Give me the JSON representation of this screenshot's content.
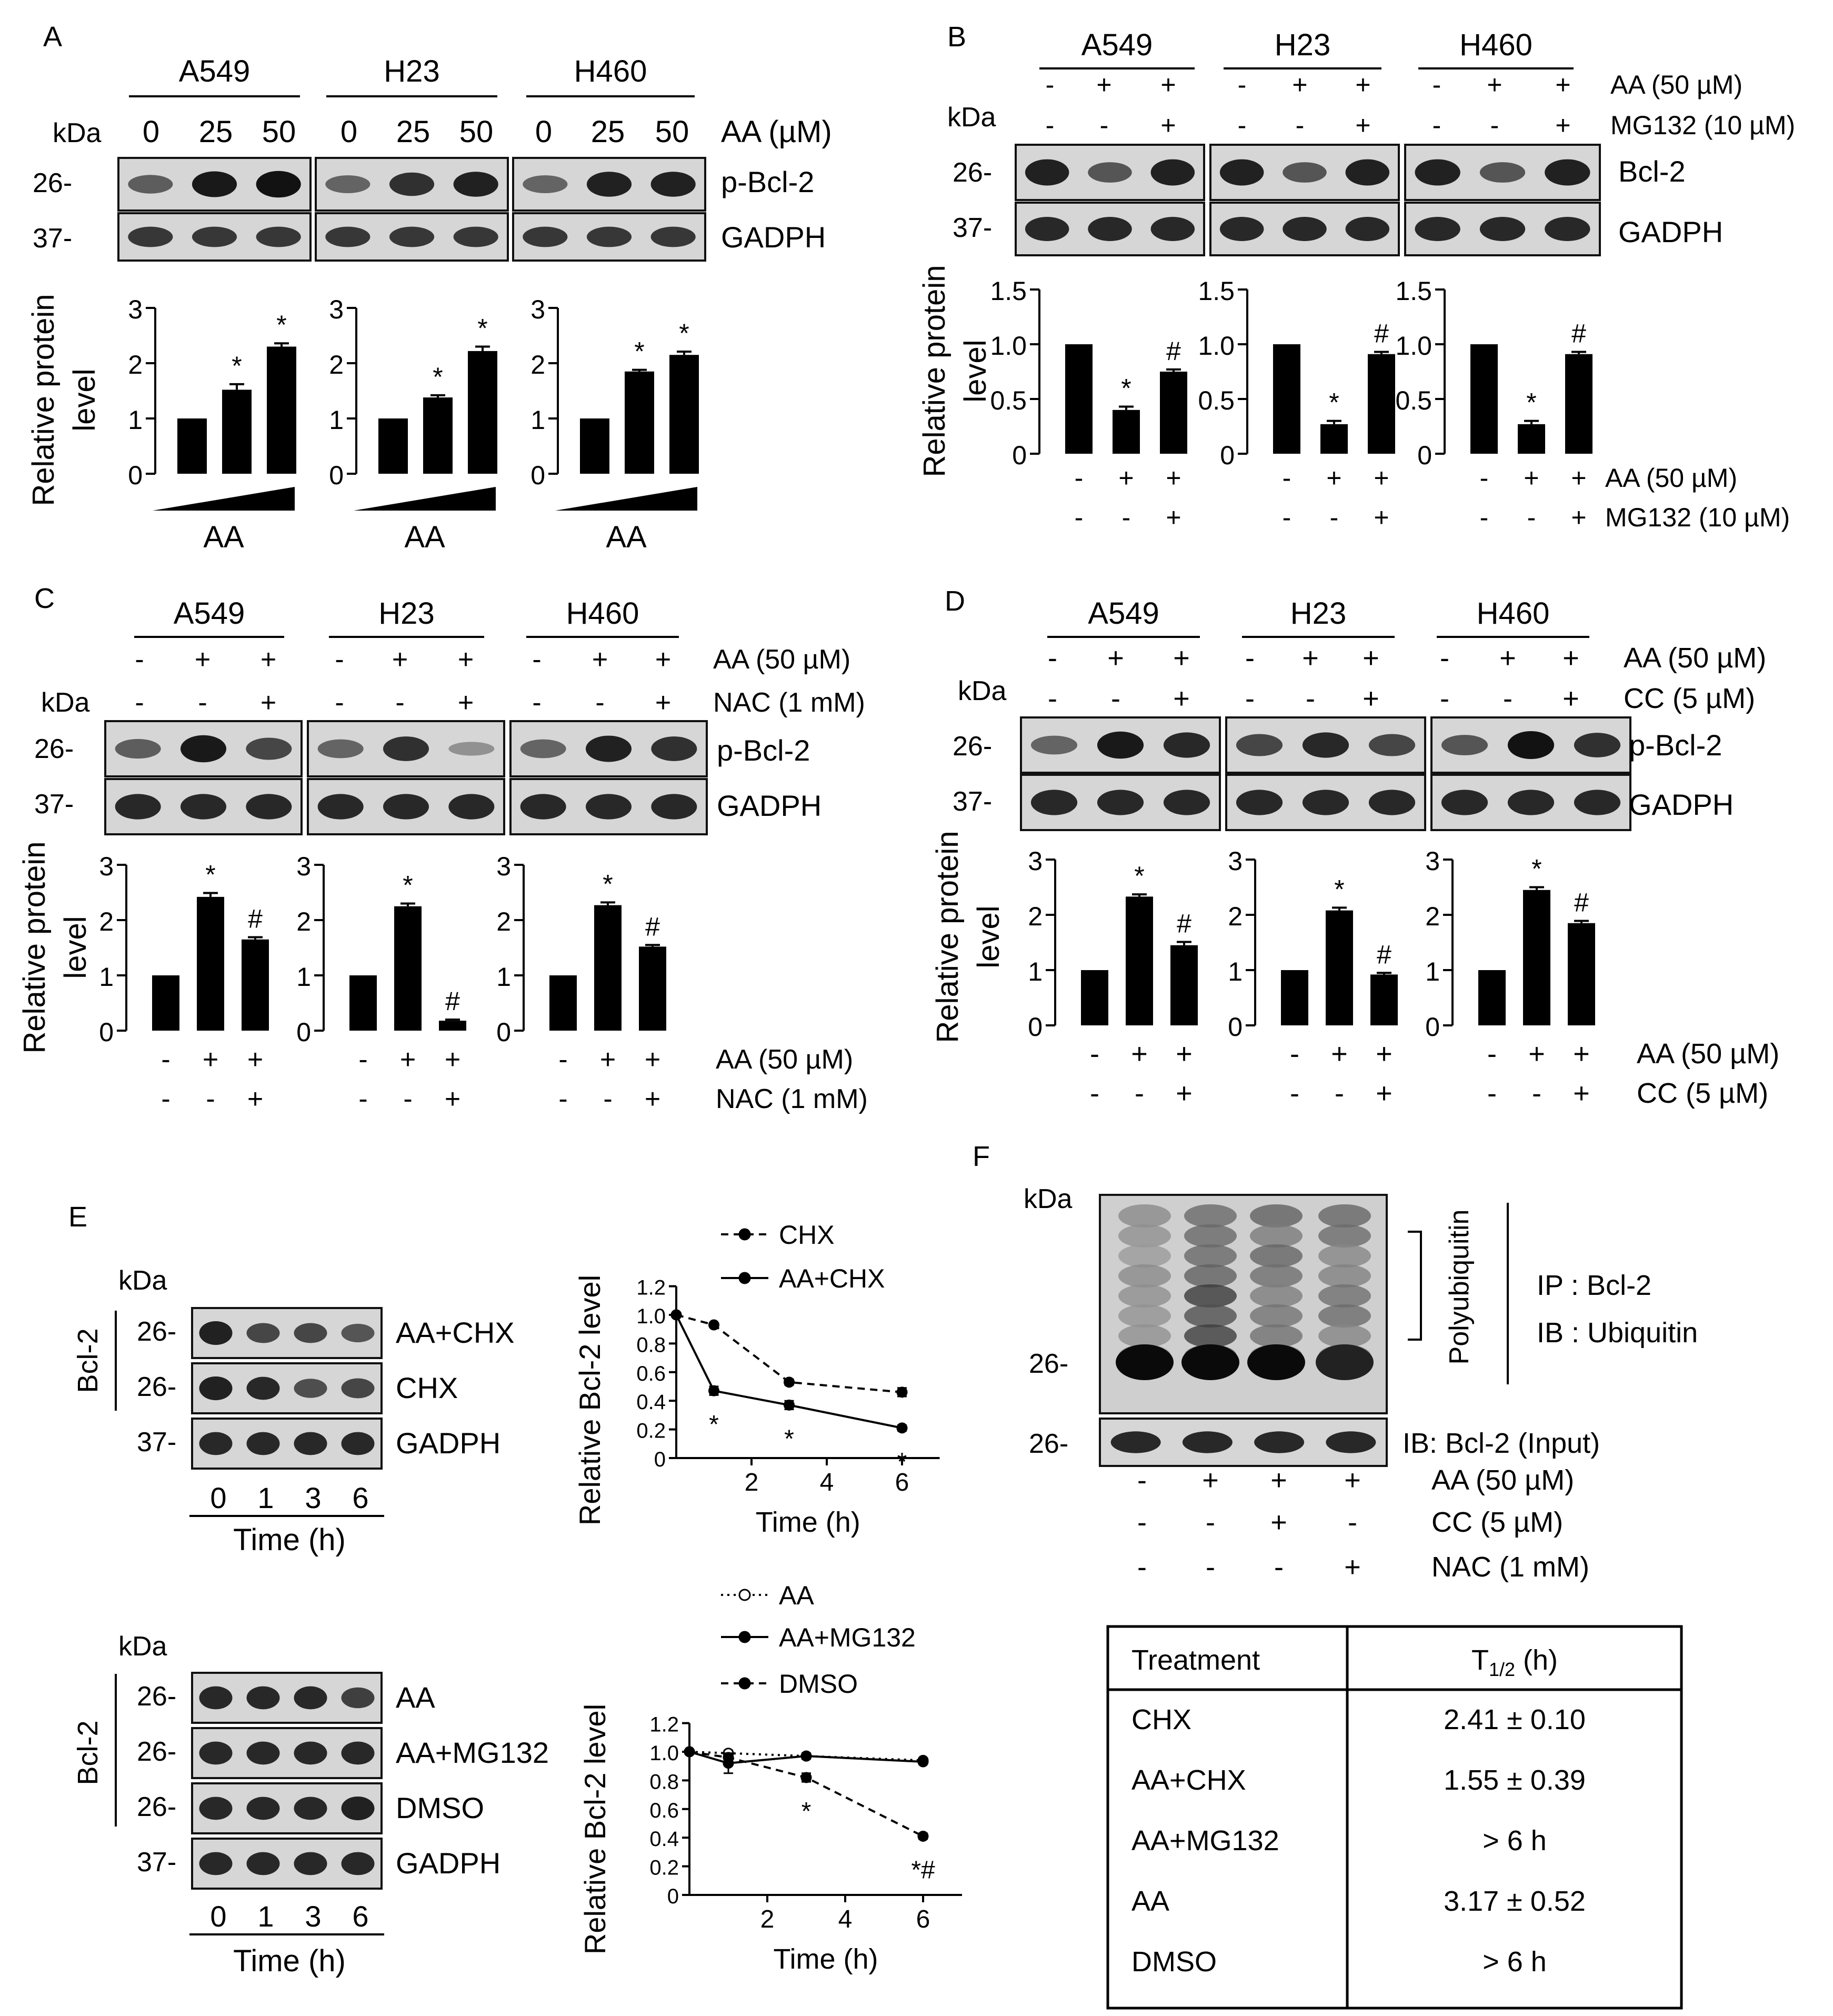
{
  "panels": {
    "A": {
      "letter": "A",
      "kda": "kDa",
      "lines": [
        "A549",
        "H23",
        "H460"
      ],
      "doses": [
        "0",
        "25",
        "50"
      ],
      "treatment": "AA (µM)",
      "markers": [
        "26-",
        "37-"
      ],
      "blots": [
        "p-Bcl-2",
        "GADPH"
      ],
      "ylabel": [
        "Relative protein",
        "level"
      ],
      "xlabel": "AA",
      "sig": "*"
    },
    "B": {
      "letter": "B",
      "kda": "kDa",
      "lines": [
        "A549",
        "H23",
        "H460"
      ],
      "rows": [
        {
          "label": "AA (50 µM)",
          "signs": [
            "-",
            "+",
            "+"
          ]
        },
        {
          "label": "MG132 (10 µM)",
          "signs": [
            "-",
            "-",
            "+"
          ]
        }
      ],
      "markers": [
        "26-",
        "37-"
      ],
      "blots": [
        "Bcl-2",
        "GADPH"
      ],
      "ylabel": [
        "Relative protein",
        "level"
      ],
      "sig": [
        "*",
        "#"
      ]
    },
    "C": {
      "letter": "C",
      "kda": "kDa",
      "lines": [
        "A549",
        "H23",
        "H460"
      ],
      "rows": [
        {
          "label": "AA (50 µM)",
          "signs": [
            "-",
            "+",
            "+"
          ]
        },
        {
          "label": "NAC (1 mM)",
          "signs": [
            "-",
            "-",
            "+"
          ]
        }
      ],
      "markers": [
        "26-",
        "37-"
      ],
      "blots": [
        "p-Bcl-2",
        "GADPH"
      ],
      "ylabel": [
        "Relative protein",
        "level"
      ],
      "sig": [
        "*",
        "#"
      ]
    },
    "D": {
      "letter": "D",
      "kda": "kDa",
      "lines": [
        "A549",
        "H23",
        "H460"
      ],
      "rows": [
        {
          "label": "AA (50 µM)",
          "signs": [
            "-",
            "+",
            "+"
          ]
        },
        {
          "label": "CC (5 µM)",
          "signs": [
            "-",
            "-",
            "+"
          ]
        }
      ],
      "markers": [
        "26-",
        "37-"
      ],
      "blots": [
        "p-Bcl-2",
        "GADPH"
      ],
      "ylabel": [
        "Relative protein",
        "level"
      ],
      "sig": [
        "*",
        "#"
      ]
    },
    "E": {
      "letter": "E",
      "kda": "kDa",
      "group": "Bcl-2",
      "times": [
        "0",
        "1",
        "3",
        "6"
      ],
      "time_label": "Time (h)",
      "blots_top": [
        "AA+CHX",
        "CHX",
        "GADPH"
      ],
      "markers_top": [
        "26-",
        "26-",
        "37-"
      ],
      "blots_bottom": [
        "AA",
        "AA+MG132",
        "DMSO",
        "GADPH"
      ],
      "markers_bottom": [
        "26-",
        "26-",
        "26-",
        "37-"
      ],
      "ylabel": "Relative Bcl-2 level"
    },
    "F": {
      "letter": "F",
      "kda": "kDa",
      "marker": "26-",
      "bracket_label": "Polyubiquitin",
      "ip": "IP : Bcl-2",
      "ib": "IB : Ubiquitin",
      "input_label": "IB: Bcl-2 (Input)",
      "rows": [
        {
          "label": "AA (50 µM)",
          "signs": [
            "-",
            "+",
            "+",
            "+"
          ]
        },
        {
          "label": "CC (5 µM)",
          "signs": [
            "-",
            "-",
            "+",
            "-"
          ]
        },
        {
          "label": "NAC (1 mM)",
          "signs": [
            "-",
            "-",
            "-",
            "+"
          ]
        }
      ],
      "table": {
        "headers": [
          "Treatment",
          "T1/2 (h)"
        ],
        "header_t": "T",
        "header_sub": "1/2",
        "header_unit": " (h)",
        "rows": [
          [
            "CHX",
            "2.41 ± 0.10"
          ],
          [
            "AA+CHX",
            "1.55 ± 0.39"
          ],
          [
            "AA+MG132",
            "> 6 h"
          ],
          [
            "AA",
            "3.17 ± 0.52"
          ],
          [
            "DMSO",
            "> 6 h"
          ]
        ]
      }
    }
  },
  "chart_data": [
    {
      "id": "A-A549",
      "type": "bar",
      "categories": [
        "0",
        "25",
        "50"
      ],
      "values": [
        1.0,
        1.52,
        2.3
      ],
      "errors": [
        0,
        0.1,
        0.06
      ],
      "ylim": [
        0,
        3
      ],
      "yticks": [
        0,
        1,
        2,
        3
      ],
      "marks": [
        "",
        "*",
        "*"
      ],
      "ylabel": "Relative protein level",
      "xlabel": "AA"
    },
    {
      "id": "A-H23",
      "type": "bar",
      "categories": [
        "0",
        "25",
        "50"
      ],
      "values": [
        1.0,
        1.38,
        2.22
      ],
      "errors": [
        0,
        0.04,
        0.08
      ],
      "ylim": [
        0,
        3
      ],
      "yticks": [
        0,
        1,
        2,
        3
      ],
      "marks": [
        "",
        "*",
        "*"
      ],
      "xlabel": "AA"
    },
    {
      "id": "A-H460",
      "type": "bar",
      "categories": [
        "0",
        "25",
        "50"
      ],
      "values": [
        1.0,
        1.85,
        2.15
      ],
      "errors": [
        0,
        0.03,
        0.06
      ],
      "ylim": [
        0,
        3
      ],
      "yticks": [
        0,
        1,
        2,
        3
      ],
      "marks": [
        "",
        "*",
        "*"
      ],
      "xlabel": "AA"
    },
    {
      "id": "B-A549",
      "type": "bar",
      "categories": [
        "1",
        "2",
        "3"
      ],
      "values": [
        1.0,
        0.4,
        0.75
      ],
      "errors": [
        0,
        0.03,
        0.02
      ],
      "ylim": [
        0,
        1.5
      ],
      "yticks": [
        0,
        0.5,
        1.0,
        1.5
      ],
      "marks": [
        "",
        "*",
        "#"
      ],
      "ylabel": "Relative protein level"
    },
    {
      "id": "B-H23",
      "type": "bar",
      "categories": [
        "1",
        "2",
        "3"
      ],
      "values": [
        1.0,
        0.27,
        0.91
      ],
      "errors": [
        0,
        0.03,
        0.02
      ],
      "ylim": [
        0,
        1.5
      ],
      "yticks": [
        0,
        0.5,
        1.0,
        1.5
      ],
      "marks": [
        "",
        "*",
        "#"
      ]
    },
    {
      "id": "B-H460",
      "type": "bar",
      "categories": [
        "1",
        "2",
        "3"
      ],
      "values": [
        1.0,
        0.27,
        0.91
      ],
      "errors": [
        0,
        0.03,
        0.02
      ],
      "ylim": [
        0,
        1.5
      ],
      "yticks": [
        0,
        0.5,
        1.0,
        1.5
      ],
      "marks": [
        "",
        "*",
        "#"
      ]
    },
    {
      "id": "C-A549",
      "type": "bar",
      "categories": [
        "1",
        "2",
        "3"
      ],
      "values": [
        1.0,
        2.42,
        1.65
      ],
      "errors": [
        0,
        0.07,
        0.04
      ],
      "ylim": [
        0,
        3
      ],
      "yticks": [
        0,
        1,
        2,
        3
      ],
      "marks": [
        "",
        "*",
        "#"
      ],
      "ylabel": "Relative protein level"
    },
    {
      "id": "C-H23",
      "type": "bar",
      "categories": [
        "1",
        "2",
        "3"
      ],
      "values": [
        1.0,
        2.25,
        0.18
      ],
      "errors": [
        0,
        0.05,
        0.02
      ],
      "ylim": [
        0,
        3
      ],
      "yticks": [
        0,
        1,
        2,
        3
      ],
      "marks": [
        "",
        "*",
        "#"
      ]
    },
    {
      "id": "C-H460",
      "type": "bar",
      "categories": [
        "1",
        "2",
        "3"
      ],
      "values": [
        1.0,
        2.27,
        1.52
      ],
      "errors": [
        0,
        0.05,
        0.03
      ],
      "ylim": [
        0,
        3
      ],
      "yticks": [
        0,
        1,
        2,
        3
      ],
      "marks": [
        "",
        "*",
        "#"
      ]
    },
    {
      "id": "D-A549",
      "type": "bar",
      "categories": [
        "1",
        "2",
        "3"
      ],
      "values": [
        1.0,
        2.33,
        1.45
      ],
      "errors": [
        0,
        0.04,
        0.06
      ],
      "ylim": [
        0,
        3
      ],
      "yticks": [
        0,
        1,
        2,
        3
      ],
      "marks": [
        "",
        "*",
        "#"
      ],
      "ylabel": "Relative protein level"
    },
    {
      "id": "D-H23",
      "type": "bar",
      "categories": [
        "1",
        "2",
        "3"
      ],
      "values": [
        1.0,
        2.08,
        0.92
      ],
      "errors": [
        0,
        0.05,
        0.03
      ],
      "ylim": [
        0,
        3
      ],
      "yticks": [
        0,
        1,
        2,
        3
      ],
      "marks": [
        "",
        "*",
        "#"
      ]
    },
    {
      "id": "D-H460",
      "type": "bar",
      "categories": [
        "1",
        "2",
        "3"
      ],
      "values": [
        1.0,
        2.45,
        1.85
      ],
      "errors": [
        0,
        0.05,
        0.04
      ],
      "ylim": [
        0,
        3
      ],
      "yticks": [
        0,
        1,
        2,
        3
      ],
      "marks": [
        "",
        "*",
        "#"
      ]
    },
    {
      "id": "E-top",
      "type": "line",
      "xlim": [
        0,
        7
      ],
      "xticks": [
        2,
        4,
        6
      ],
      "ylim": [
        0,
        1.2
      ],
      "yticks": [
        0,
        0.2,
        0.4,
        0.6,
        0.8,
        1.0,
        1.2
      ],
      "xlabel": "Time (h)",
      "ylabel": "Relative Bcl-2 level",
      "series": [
        {
          "name": "CHX",
          "style": "dashed",
          "marker": "filled",
          "x": [
            0,
            1,
            3,
            6
          ],
          "y": [
            1.0,
            0.93,
            0.53,
            0.46
          ],
          "err": [
            0,
            0.01,
            0.02,
            0.03
          ],
          "marks": []
        },
        {
          "name": "AA+CHX",
          "style": "solid",
          "marker": "filled",
          "x": [
            0,
            1,
            3,
            6
          ],
          "y": [
            1.0,
            0.47,
            0.37,
            0.21
          ],
          "err": [
            0,
            0.03,
            0.03,
            0.02
          ],
          "marks": [
            {
              "x": 1,
              "text": "*"
            },
            {
              "x": 3,
              "text": "*"
            },
            {
              "x": 6,
              "text": "*"
            }
          ]
        }
      ]
    },
    {
      "id": "E-bottom",
      "type": "line",
      "xlim": [
        0,
        7
      ],
      "xticks": [
        2,
        4,
        6
      ],
      "ylim": [
        0,
        1.2
      ],
      "yticks": [
        0,
        0.2,
        0.4,
        0.6,
        0.8,
        1.0,
        1.2
      ],
      "xlabel": "Time (h)",
      "ylabel": "Relative Bcl-2 level",
      "series": [
        {
          "name": "AA",
          "style": "dotted",
          "marker": "open",
          "x": [
            0,
            1,
            3,
            6
          ],
          "y": [
            1.0,
            0.99,
            0.97,
            0.94
          ],
          "err": [
            0,
            0.02,
            0.02,
            0.01
          ],
          "marks": []
        },
        {
          "name": "AA+MG132",
          "style": "solid",
          "marker": "filled",
          "x": [
            0,
            1,
            3,
            6
          ],
          "y": [
            1.0,
            0.92,
            0.97,
            0.93
          ],
          "err": [
            0,
            0.07,
            0.02,
            0.01
          ],
          "marks": []
        },
        {
          "name": "DMSO",
          "style": "dashed",
          "marker": "filled",
          "x": [
            0,
            1,
            3,
            6
          ],
          "y": [
            1.0,
            0.96,
            0.82,
            0.41
          ],
          "err": [
            0,
            0.02,
            0.03,
            0.02
          ],
          "marks": [
            {
              "x": 3,
              "text": "*"
            },
            {
              "x": 6,
              "text": "*#"
            }
          ]
        }
      ]
    }
  ]
}
